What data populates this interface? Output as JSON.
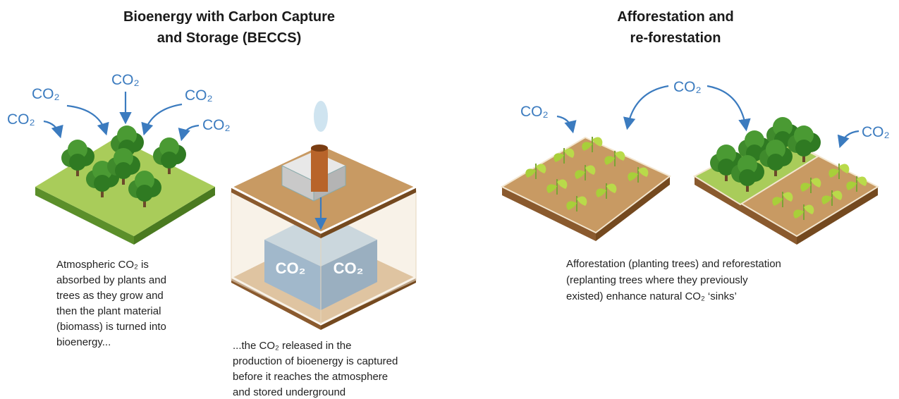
{
  "beccs": {
    "title": [
      "Bioenergy with Carbon Capture",
      "and Storage (BECCS)"
    ],
    "air_labels": [
      "CO₂",
      "CO₂",
      "CO₂",
      "CO₂",
      "CO₂"
    ],
    "store_labels": [
      "CO₂",
      "CO₂"
    ],
    "caption_biomass": [
      "Atmospheric CO₂ is",
      "absorbed by plants and",
      "trees as they grow and",
      "then the plant material",
      "(biomass) is turned into",
      "bioenergy..."
    ],
    "caption_storage": [
      "...the CO₂ released in the",
      "production of bioenergy is captured",
      "before it reaches the atmosphere",
      "and stored underground"
    ]
  },
  "afforestation": {
    "title": [
      "Afforestation and",
      "re-forestation"
    ],
    "air_labels": [
      "CO₂",
      "CO₂",
      "CO₂"
    ],
    "caption": [
      "Afforestation (planting trees) and reforestation",
      "(replanting trees where they previously",
      "existed) enhance natural CO₂ ‘sinks’"
    ]
  }
}
